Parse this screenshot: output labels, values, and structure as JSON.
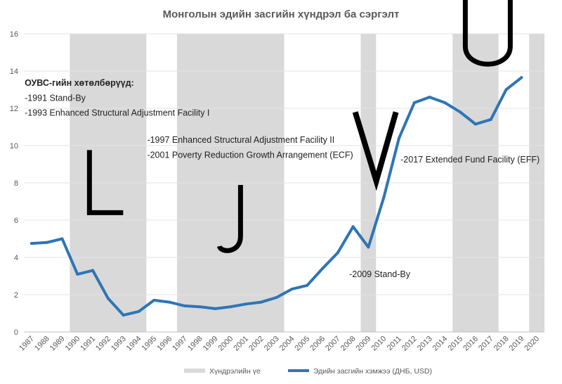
{
  "chart_data": {
    "type": "line",
    "title": "Монголын эдийн засгийн хүндрэл ба сэргэлт",
    "x": [
      1987,
      1988,
      1989,
      1990,
      1991,
      1992,
      1993,
      1994,
      1995,
      1996,
      1997,
      1998,
      1999,
      2000,
      2001,
      2002,
      2003,
      2004,
      2005,
      2006,
      2007,
      2008,
      2009,
      2010,
      2011,
      2012,
      2013,
      2014,
      2015,
      2016,
      2017,
      2018,
      2019
    ],
    "x_ticks": [
      "1987",
      "1988",
      "1989",
      "1990",
      "1991",
      "1992",
      "1993",
      "1994",
      "1995",
      "1996",
      "1997",
      "1998",
      "1999",
      "2000",
      "2001",
      "2002",
      "2003",
      "2004",
      "2005",
      "2006",
      "2007",
      "2008",
      "2009",
      "2010",
      "2011",
      "2012",
      "2013",
      "2014",
      "2015",
      "2016",
      "2017",
      "2018",
      "2019",
      "2020"
    ],
    "ylim": [
      0,
      16
    ],
    "y_ticks": [
      "0",
      "2",
      "4",
      "6",
      "8",
      "10",
      "12",
      "14",
      "16"
    ],
    "grid": true,
    "legend_position": "bottom",
    "series": [
      {
        "name": "Эдийн засгийн хэмжээ (ДНБ, USD)",
        "color": "#2E75B6",
        "values": [
          4.75,
          4.8,
          5.0,
          3.1,
          3.3,
          1.8,
          0.9,
          1.1,
          1.7,
          1.6,
          1.4,
          1.35,
          1.25,
          1.35,
          1.5,
          1.6,
          1.85,
          2.3,
          2.5,
          3.4,
          4.25,
          5.65,
          4.55,
          7.2,
          10.4,
          12.3,
          12.6,
          12.3,
          11.8,
          11.15,
          11.4,
          13.0,
          13.65
        ]
      }
    ],
    "crisis_periods": {
      "name": "Хүндрэлийн үе",
      "color": "#D9D9D9",
      "ranges": [
        [
          1990,
          1994
        ],
        [
          1997,
          2003
        ],
        [
          2009,
          2009
        ],
        [
          2015,
          2017
        ],
        [
          2020,
          2020
        ]
      ]
    },
    "shape_letters": [
      {
        "letter": "L",
        "year": 1991.7,
        "value": 6.4
      },
      {
        "letter": "J",
        "year": 2000.1,
        "value": 4.3
      },
      {
        "letter": "V",
        "year": 2009.7,
        "value": 8.1
      },
      {
        "letter": "U",
        "year": 2016.8,
        "value": 14.2
      }
    ],
    "annotations": [
      {
        "text": "ОУВС-гийн хөтөлбөрүүд:",
        "bold": true,
        "year": 1987.05,
        "value": 13.35
      },
      {
        "text": "-1991 Stand-By",
        "bold": false,
        "year": 1987.05,
        "value": 12.55
      },
      {
        "text": "-1993 Enhanced Structural Adjustment Facility I",
        "bold": false,
        "year": 1987.05,
        "value": 11.75
      },
      {
        "text": "-1997 Enhanced Structural Adjustment Facility II",
        "bold": false,
        "year": 1995.05,
        "value": 10.3
      },
      {
        "text": "-2001 Poverty Reduction Growth Arrangement (ECF)",
        "bold": false,
        "year": 1995.05,
        "value": 9.5
      },
      {
        "text": "-2009 Stand-By",
        "bold": false,
        "year": 2008.25,
        "value": 3.1
      },
      {
        "text": "-2017 Extended Fund Facility (EFF)",
        "bold": false,
        "year": 2011.6,
        "value": 9.25
      }
    ]
  }
}
